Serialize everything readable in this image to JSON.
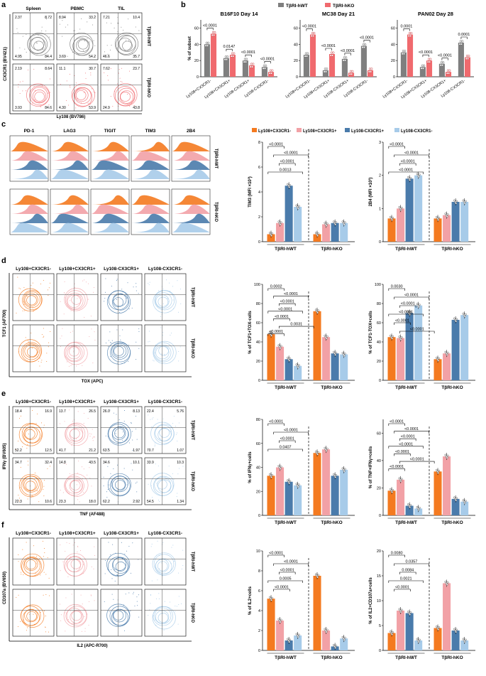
{
  "colors": {
    "pos_neg": "#f47a20",
    "pos_pos": "#f2a1a6",
    "neg_pos": "#4a7bab",
    "neg_neg": "#a7cbe9",
    "hwt": "#7f7f7f",
    "hko": "#f06a6e"
  },
  "panel_letters": [
    "a",
    "b",
    "c",
    "d",
    "e",
    "f"
  ],
  "panel_a": {
    "col_titles": [
      "Spleen",
      "PBMC",
      "TIL"
    ],
    "row_labels": [
      "TβRI-hWT",
      "TβRI-hKO"
    ],
    "ylabel": "CX3CR1 (BV421)",
    "xlabel": "Ly108 (BV786)",
    "quadrants": [
      [
        [
          "2.37",
          "8.72",
          "4.95",
          "84.4"
        ],
        [
          "8.94",
          "33.2",
          "3.69",
          "54.2"
        ],
        [
          "7.21",
          "10.4",
          "46.6",
          "35.7"
        ]
      ],
      [
        [
          "2.19",
          "8.64",
          "3.93",
          "84.6"
        ],
        [
          "11.1",
          "30.7",
          "4.30",
          "53.9"
        ],
        [
          "7.62",
          "23.7",
          "24.9",
          "43.8"
        ]
      ]
    ]
  },
  "panel_b": {
    "legend": [
      "TβRI-hWT",
      "TβRI-hKO"
    ],
    "ylabel": "% of subset",
    "cats": [
      "Ly108+CX3CR1-",
      "Ly108+CX3CR1+",
      "Ly108-CX3CR1+",
      "Ly108-CX3CR1-"
    ],
    "plots": [
      {
        "title": "B16F10 Day 14",
        "pvals": [
          "<0.0001",
          "0.0147",
          "<0.0001",
          "<0.0001"
        ]
      },
      {
        "title": "MC38 Day 21",
        "pvals": [
          "<0.0001",
          "<0.0001",
          "<0.0001",
          "<0.0001"
        ]
      },
      {
        "title": "PAN02 Day 28",
        "pvals": [
          "0.0001",
          "<0.0001",
          "<0.0001",
          "0.0001"
        ]
      }
    ]
  },
  "panel_c": {
    "markers": [
      "PD-1",
      "LAG3",
      "TIGIT",
      "TIM3",
      "2B4"
    ],
    "row_labels": [
      "TβRI-hWT",
      "TβRI-hKO"
    ],
    "legend": [
      "Ly108+CX3CR1-",
      "Ly108+CX3CR1+",
      "Ly108-CX3CR1+",
      "Ly108-CX3CR1-"
    ],
    "groups": [
      "TβRI-hWT",
      "TβRI-hKO"
    ],
    "tim3_pvals": [
      "<0.0001",
      "<0.0001",
      "<0.0001",
      "0.0013"
    ],
    "b24_pvals": [
      "<0.0001",
      "<0.0001",
      "<0.0001",
      "<0.0001"
    ],
    "tim3_ylabel": "TIM3 (MFI ×10³)",
    "b24_ylabel": "2B4 (MFI ×10³)"
  },
  "panel_d": {
    "col_titles": [
      "Ly108+CX3CR1-",
      "Ly108+CX3CR1+",
      "Ly108-CX3CR1+",
      "Ly108-CX3CR1-"
    ],
    "row_labels": [
      "TβRI-hWT",
      "TβRI-hKO"
    ],
    "ylabel": "TCF1 (AF700)",
    "xlabel": "TOX (APC)",
    "plot1_ylabel": "% of TCF1+TOX-cells",
    "plot2_ylabel": "% of TCF1-TOX+cells",
    "plot1_pvals": [
      "0.0002",
      "<0.0001",
      "<0.0001",
      "<0.0001",
      "<0.0001",
      "0.0031",
      "<0.0001"
    ],
    "plot2_pvals": [
      "0.0030",
      "<0.0001",
      "<0.0001",
      "<0.0001",
      "<0.0001",
      "<0.0001"
    ]
  },
  "panel_e": {
    "col_titles": [
      "Ly108+CX3CR1-",
      "Ly108+CX3CR1+",
      "Ly108-CX3CR1+",
      "Ly108-CX3CR1-"
    ],
    "row_labels": [
      "TβRI-hWT",
      "TβRI-hKO"
    ],
    "ylabel": "IFNγ (BV605)",
    "xlabel": "TNF (AF488)",
    "quadrants": [
      [
        [
          "18.4",
          "16.9",
          "52.2",
          "12.5"
        ],
        [
          "13.7",
          "26.5",
          "41.7",
          "21.2"
        ],
        [
          "26.0",
          "8.13",
          "63.5",
          "1.97"
        ],
        [
          "22.4",
          "5.76",
          "70.7",
          "1.07"
        ]
      ],
      [
        [
          "34.7",
          "32.4",
          "22.3",
          "10.6"
        ],
        [
          "14.8",
          "43.5",
          "23.3",
          "18.0"
        ],
        [
          "34.6",
          "10.1",
          "62.2",
          "2.92"
        ],
        [
          "33.9",
          "10.3",
          "54.5",
          "1.34"
        ]
      ]
    ],
    "plot1_ylabel": "% of IFNγ+cells",
    "plot2_ylabel": "% of TNF+IFNγ+cells",
    "plot1_pvals": [
      "<0.0001",
      "<0.0001",
      "<0.0001",
      "0.0407"
    ],
    "plot2_pvals": [
      "<0.0001",
      "<0.0001",
      "<0.0001",
      "<0.0001",
      "<0.0001",
      "<0.0001",
      "<0.0001"
    ]
  },
  "panel_f": {
    "col_titles": [
      "Ly108+CX3CR1-",
      "Ly108+CX3CR1+",
      "Ly108-CX3CR1+",
      "Ly108-CX3CR1-"
    ],
    "row_labels": [
      "TβRI-hWT",
      "TβRI-hKO"
    ],
    "ylabel": "CD107a (BV650)",
    "xlabel": "IL2 (APC-R700)",
    "plot1_ylabel": "% of IL2+cells",
    "plot2_ylabel": "% of IL2+CD107a+cells",
    "plot1_pvals": [
      "<0.0001",
      "<0.0001",
      "<0.0001",
      "0.0005",
      "<0.0001"
    ],
    "plot2_pvals": [
      "0.0080",
      "0.0357",
      "0.0084",
      "0.0021",
      "<0.0001"
    ]
  },
  "chart_data": [
    {
      "type": "bar",
      "title": "B16F10 Day 14",
      "ylabel": "% of subset",
      "categories": [
        "Ly108+CX3CR1-",
        "Ly108+CX3CR1+",
        "Ly108-CX3CR1+",
        "Ly108-CX3CR1-"
      ],
      "ylim": [
        0,
        70
      ],
      "series": [
        {
          "name": "TβRI-hWT",
          "values": [
            40,
            23,
            20,
            12
          ]
        },
        {
          "name": "TβRI-hKO",
          "values": [
            53,
            27,
            14,
            6
          ]
        }
      ]
    },
    {
      "type": "bar",
      "title": "MC38 Day 21",
      "ylabel": "% of subset",
      "categories": [
        "Ly108+CX3CR1-",
        "Ly108+CX3CR1+",
        "Ly108-CX3CR1+",
        "Ly108-CX3CR1-"
      ],
      "ylim": [
        0,
        70
      ],
      "series": [
        {
          "name": "TβRI-hWT",
          "values": [
            27,
            8,
            22,
            38
          ]
        },
        {
          "name": "TβRI-hKO",
          "values": [
            52,
            28,
            5,
            8
          ]
        }
      ]
    },
    {
      "type": "bar",
      "title": "PAN02 Day 28",
      "ylabel": "% of subset",
      "categories": [
        "Ly108+CX3CR1-",
        "Ly108+CX3CR1+",
        "Ly108-CX3CR1+",
        "Ly108-CX3CR1-"
      ],
      "ylim": [
        0,
        70
      ],
      "series": [
        {
          "name": "TβRI-hWT",
          "values": [
            30,
            12,
            16,
            42
          ]
        },
        {
          "name": "TβRI-hKO",
          "values": [
            52,
            20,
            6,
            24
          ]
        }
      ]
    },
    {
      "type": "bar",
      "ylabel": "TIM3 (MFI ×10³)",
      "categories": [
        "TβRI-hWT",
        "TβRI-hKO"
      ],
      "ylim": [
        0,
        8
      ],
      "series": [
        {
          "name": "Ly108+CX3CR1-",
          "values": [
            0.6,
            0.6
          ]
        },
        {
          "name": "Ly108+CX3CR1+",
          "values": [
            1.5,
            1.4
          ]
        },
        {
          "name": "Ly108-CX3CR1+",
          "values": [
            4.5,
            1.5
          ]
        },
        {
          "name": "Ly108-CX3CR1-",
          "values": [
            2.8,
            1.5
          ]
        }
      ]
    },
    {
      "type": "bar",
      "ylabel": "2B4 (MFI ×10³)",
      "categories": [
        "TβRI-hWT",
        "TβRI-hKO"
      ],
      "ylim": [
        0,
        3
      ],
      "series": [
        {
          "name": "Ly108+CX3CR1-",
          "values": [
            0.7,
            0.7
          ]
        },
        {
          "name": "Ly108+CX3CR1+",
          "values": [
            1.0,
            0.8
          ]
        },
        {
          "name": "Ly108-CX3CR1+",
          "values": [
            1.9,
            1.2
          ]
        },
        {
          "name": "Ly108-CX3CR1-",
          "values": [
            2.0,
            1.2
          ]
        }
      ]
    },
    {
      "type": "bar",
      "ylabel": "% of TCF1+TOX-cells",
      "categories": [
        "TβRI-hWT",
        "TβRI-hKO"
      ],
      "ylim": [
        0,
        100
      ],
      "series": [
        {
          "name": "Ly108+CX3CR1-",
          "values": [
            48,
            72
          ]
        },
        {
          "name": "Ly108+CX3CR1+",
          "values": [
            35,
            45
          ]
        },
        {
          "name": "Ly108-CX3CR1+",
          "values": [
            22,
            28
          ]
        },
        {
          "name": "Ly108-CX3CR1-",
          "values": [
            15,
            27
          ]
        }
      ]
    },
    {
      "type": "bar",
      "ylabel": "% of TCF1-TOX+cells",
      "categories": [
        "TβRI-hWT",
        "TβRI-hKO"
      ],
      "ylim": [
        0,
        100
      ],
      "series": [
        {
          "name": "Ly108+CX3CR1-",
          "values": [
            45,
            22
          ]
        },
        {
          "name": "Ly108+CX3CR1+",
          "values": [
            44,
            28
          ]
        },
        {
          "name": "Ly108-CX3CR1+",
          "values": [
            70,
            63
          ]
        },
        {
          "name": "Ly108-CX3CR1-",
          "values": [
            78,
            68
          ]
        }
      ]
    },
    {
      "type": "bar",
      "ylabel": "% of IFNγ+cells",
      "categories": [
        "TβRI-hWT",
        "TβRI-hKO"
      ],
      "ylim": [
        0,
        80
      ],
      "series": [
        {
          "name": "Ly108+CX3CR1-",
          "values": [
            33,
            52
          ]
        },
        {
          "name": "Ly108+CX3CR1+",
          "values": [
            40,
            55
          ]
        },
        {
          "name": "Ly108-CX3CR1+",
          "values": [
            28,
            33
          ]
        },
        {
          "name": "Ly108-CX3CR1-",
          "values": [
            25,
            38
          ]
        }
      ]
    },
    {
      "type": "bar",
      "ylabel": "% of TNF+IFNγ+cells",
      "categories": [
        "TβRI-hWT",
        "TβRI-hKO"
      ],
      "ylim": [
        0,
        70
      ],
      "series": [
        {
          "name": "Ly108+CX3CR1-",
          "values": [
            18,
            32
          ]
        },
        {
          "name": "Ly108+CX3CR1+",
          "values": [
            26,
            43
          ]
        },
        {
          "name": "Ly108-CX3CR1+",
          "values": [
            7,
            12
          ]
        },
        {
          "name": "Ly108-CX3CR1-",
          "values": [
            5,
            10
          ]
        }
      ]
    },
    {
      "type": "bar",
      "ylabel": "% of IL2+cells",
      "categories": [
        "TβRI-hWT",
        "TβRI-hKO"
      ],
      "ylim": [
        0,
        10
      ],
      "series": [
        {
          "name": "Ly108+CX3CR1-",
          "values": [
            5.2,
            7.5
          ]
        },
        {
          "name": "Ly108+CX3CR1+",
          "values": [
            3.0,
            2.0
          ]
        },
        {
          "name": "Ly108-CX3CR1+",
          "values": [
            1.0,
            0.4
          ]
        },
        {
          "name": "Ly108-CX3CR1-",
          "values": [
            1.5,
            1.2
          ]
        }
      ]
    },
    {
      "type": "bar",
      "ylabel": "% of IL2+CD107a+cells",
      "categories": [
        "TβRI-hWT",
        "TβRI-hKO"
      ],
      "ylim": [
        0,
        20
      ],
      "series": [
        {
          "name": "Ly108+CX3CR1-",
          "values": [
            3.5,
            4.5
          ]
        },
        {
          "name": "Ly108+CX3CR1+",
          "values": [
            8.0,
            13.5
          ]
        },
        {
          "name": "Ly108-CX3CR1+",
          "values": [
            7.5,
            4.0
          ]
        },
        {
          "name": "Ly108-CX3CR1-",
          "values": [
            2.0,
            2.0
          ]
        }
      ]
    }
  ]
}
